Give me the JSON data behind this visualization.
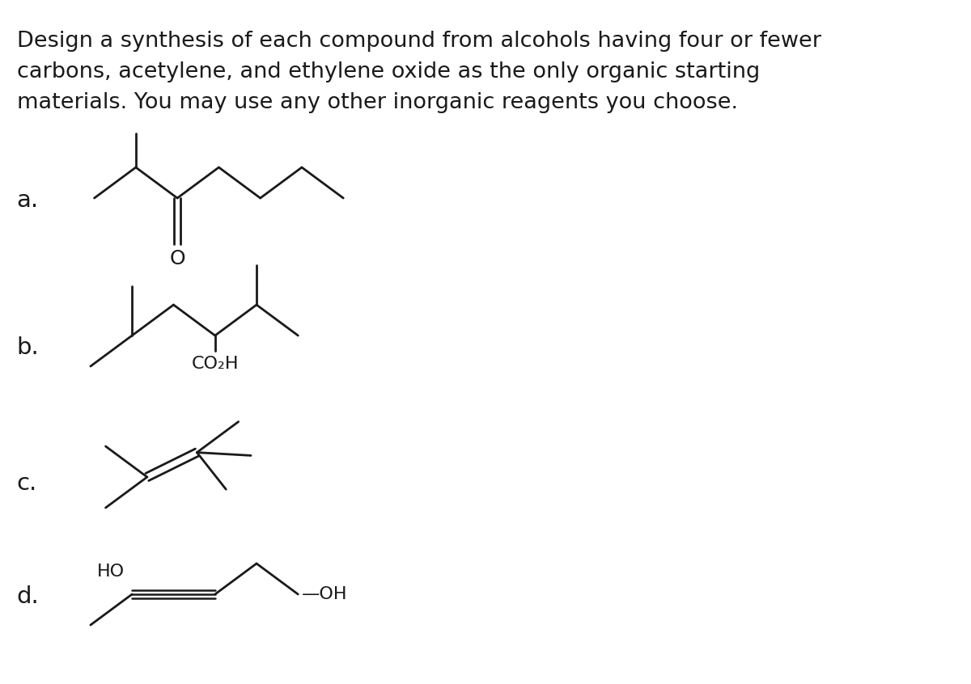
{
  "bg_color": "#ffffff",
  "text_color": "#1a1a1a",
  "title_lines": [
    "Design a synthesis of each compound from alcohols having four or fewer",
    "carbons, acetylene, and ethylene oxide as the only organic starting",
    "materials. You may use any other inorganic reagents you choose."
  ],
  "title_fontsize": 19.5,
  "label_fontsize": 21,
  "chem_fontsize": 17
}
